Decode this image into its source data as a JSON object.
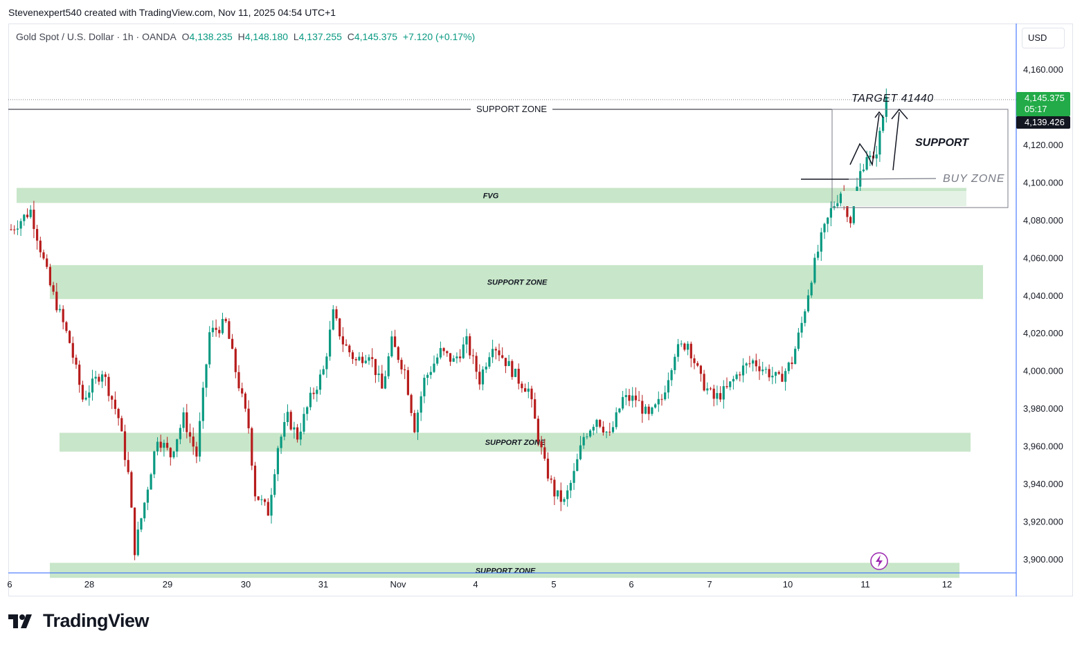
{
  "attribution": "Stevenexpert540 created with TradingView.com, Nov 11, 2025 04:54 UTC+1",
  "symbol": {
    "name": "Gold Spot / U.S. Dollar · 1h · OANDA",
    "open_label": "O",
    "open": "4,138.235",
    "high_label": "H",
    "high": "4,148.180",
    "low_label": "L",
    "low": "4,137.255",
    "close_label": "C",
    "close": "4,145.375",
    "change": "+7.120 (+0.17%)"
  },
  "currency": "USD",
  "brand": "TradingView",
  "colors": {
    "up": "#089981",
    "down": "#b71c1c",
    "zone": "#c8e6c9",
    "price_tag": "#22ab48",
    "axis_line": "#2962ff",
    "alert": "#9c27b0"
  },
  "chart_data": {
    "type": "candlestick",
    "timeframe": "1h",
    "y_ticks": [
      "4,160.000",
      "4,140.000",
      "4,120.000",
      "4,100.000",
      "4,080.000",
      "4,060.000",
      "4,040.000",
      "4,020.000",
      "4,000.000",
      "3,980.000",
      "3,960.000",
      "3,940.000",
      "3,920.000",
      "3,900.000"
    ],
    "x_ticks": [
      "6",
      "28",
      "29",
      "30",
      "31",
      "Nov",
      "4",
      "5",
      "6",
      "7",
      "10",
      "11",
      "12"
    ],
    "price_tags": {
      "last": "4,145.375",
      "countdown": "05:17",
      "level": "4,139.426"
    },
    "zones": [
      {
        "label": "FVG",
        "from": 4089,
        "to": 4097
      },
      {
        "label": "SUPPORT ZONE",
        "from": 4038,
        "to": 4056
      },
      {
        "label": "SUPPORT ZONE",
        "from": 3957,
        "to": 3967
      },
      {
        "label": "SUPPORT ZONE",
        "from": 3890,
        "to": 3898
      }
    ],
    "annotations": {
      "top_line": "SUPPORT ZONE",
      "target": "TARGET 41440",
      "support": "SUPPORT",
      "buy_zone": "BUY ZONE"
    },
    "anchors": [
      {
        "t": 0,
        "p": 4075
      },
      {
        "t": 6,
        "p": 4085
      },
      {
        "t": 12,
        "p": 4045
      },
      {
        "t": 18,
        "p": 4015
      },
      {
        "t": 22,
        "p": 3985
      },
      {
        "t": 28,
        "p": 4000
      },
      {
        "t": 33,
        "p": 3975
      },
      {
        "t": 36,
        "p": 3945
      },
      {
        "t": 38,
        "p": 3905
      },
      {
        "t": 41,
        "p": 3930
      },
      {
        "t": 45,
        "p": 3965
      },
      {
        "t": 49,
        "p": 3955
      },
      {
        "t": 53,
        "p": 3975
      },
      {
        "t": 57,
        "p": 3955
      },
      {
        "t": 61,
        "p": 4020
      },
      {
        "t": 66,
        "p": 4025
      },
      {
        "t": 69,
        "p": 4000
      },
      {
        "t": 73,
        "p": 3970
      },
      {
        "t": 75,
        "p": 3935
      },
      {
        "t": 79,
        "p": 3925
      },
      {
        "t": 82,
        "p": 3960
      },
      {
        "t": 85,
        "p": 3975
      },
      {
        "t": 88,
        "p": 3965
      },
      {
        "t": 92,
        "p": 3985
      },
      {
        "t": 96,
        "p": 4000
      },
      {
        "t": 99,
        "p": 4030
      },
      {
        "t": 102,
        "p": 4015
      },
      {
        "t": 106,
        "p": 4005
      },
      {
        "t": 110,
        "p": 4010
      },
      {
        "t": 114,
        "p": 3990
      },
      {
        "t": 117,
        "p": 4015
      },
      {
        "t": 121,
        "p": 4000
      },
      {
        "t": 124,
        "p": 3970
      },
      {
        "t": 127,
        "p": 3995
      },
      {
        "t": 132,
        "p": 4010
      },
      {
        "t": 136,
        "p": 4005
      },
      {
        "t": 140,
        "p": 4015
      },
      {
        "t": 144,
        "p": 3995
      },
      {
        "t": 148,
        "p": 4015
      },
      {
        "t": 152,
        "p": 4005
      },
      {
        "t": 156,
        "p": 3995
      },
      {
        "t": 159,
        "p": 3990
      },
      {
        "t": 162,
        "p": 3965
      },
      {
        "t": 164,
        "p": 3950
      },
      {
        "t": 167,
        "p": 3935
      },
      {
        "t": 170,
        "p": 3930
      },
      {
        "t": 173,
        "p": 3945
      },
      {
        "t": 176,
        "p": 3965
      },
      {
        "t": 180,
        "p": 3975
      },
      {
        "t": 184,
        "p": 3965
      },
      {
        "t": 188,
        "p": 3985
      },
      {
        "t": 192,
        "p": 3985
      },
      {
        "t": 196,
        "p": 3975
      },
      {
        "t": 200,
        "p": 3985
      },
      {
        "t": 204,
        "p": 4010
      },
      {
        "t": 208,
        "p": 4015
      },
      {
        "t": 212,
        "p": 3995
      },
      {
        "t": 216,
        "p": 3985
      },
      {
        "t": 220,
        "p": 3990
      },
      {
        "t": 224,
        "p": 4000
      },
      {
        "t": 228,
        "p": 4005
      },
      {
        "t": 232,
        "p": 4000
      },
      {
        "t": 236,
        "p": 3995
      },
      {
        "t": 240,
        "p": 4005
      },
      {
        "t": 243,
        "p": 4025
      },
      {
        "t": 246,
        "p": 4050
      },
      {
        "t": 249,
        "p": 4070
      },
      {
        "t": 252,
        "p": 4085
      },
      {
        "t": 255,
        "p": 4095
      },
      {
        "t": 258,
        "p": 4080
      },
      {
        "t": 261,
        "p": 4105
      },
      {
        "t": 263,
        "p": 4115
      },
      {
        "t": 265,
        "p": 4110
      },
      {
        "t": 267,
        "p": 4125
      },
      {
        "t": 269,
        "p": 4145
      }
    ]
  }
}
